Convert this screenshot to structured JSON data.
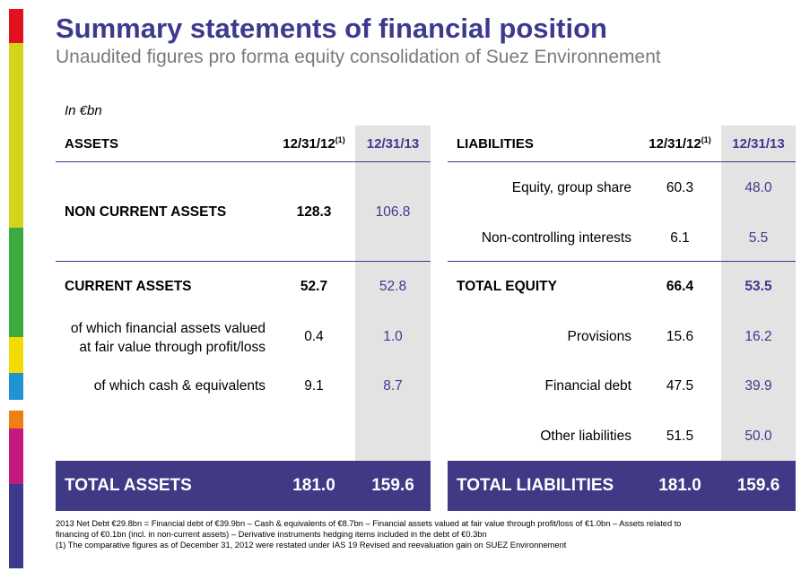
{
  "title": "Summary statements of financial position",
  "subtitle": "Unaudited figures pro forma equity consolidation of Suez Environnement",
  "unit": "In €bn",
  "colors": {
    "brand": "#3d3a8e",
    "total_bar": "#3f3986",
    "stripe": [
      "#e3101e",
      "#d4d41c",
      "#3bab3f",
      "#f5dc00",
      "#1f93d4",
      "#f07e12",
      "#c4197f",
      "#3d3a8e"
    ]
  },
  "assets": {
    "header": {
      "label": "ASSETS",
      "col1": "12/31/12",
      "col1_note": "(1)",
      "col2": "12/31/13"
    },
    "rows": [
      {
        "label": "NON CURRENT ASSETS",
        "v1": "128.3",
        "v2": "106.8"
      },
      {
        "label": "CURRENT ASSETS",
        "v1": "52.7",
        "v2": "52.8"
      },
      {
        "label_line1": "of which financial assets valued",
        "label_line2": "at fair value through profit/loss",
        "v1": "0.4",
        "v2": "1.0"
      },
      {
        "label": "of which cash & equivalents",
        "v1": "9.1",
        "v2": "8.7"
      }
    ],
    "total": {
      "label": "TOTAL ASSETS",
      "v1": "181.0",
      "v2": "159.6"
    }
  },
  "liabilities": {
    "header": {
      "label": "LIABILITIES",
      "col1": "12/31/12",
      "col1_note": "(1)",
      "col2": "12/31/13"
    },
    "rows": [
      {
        "label": "Equity, group share",
        "v1": "60.3",
        "v2": "48.0"
      },
      {
        "label": "Non-controlling interests",
        "v1": "6.1",
        "v2": "5.5"
      },
      {
        "label": "TOTAL EQUITY",
        "v1": "66.4",
        "v2": "53.5"
      },
      {
        "label": "Provisions",
        "v1": "15.6",
        "v2": "16.2"
      },
      {
        "label": "Financial debt",
        "v1": "47.5",
        "v2": "39.9"
      },
      {
        "label": "Other liabilities",
        "v1": "51.5",
        "v2": "50.0"
      }
    ],
    "total": {
      "label": "TOTAL LIABILITIES",
      "v1": "181.0",
      "v2": "159.6"
    }
  },
  "footnotes": [
    "2013 Net Debt €29.8bn = Financial debt of €39.9bn – Cash & equivalents of €8.7bn – Financial assets valued at fair value through profit/loss of €1.0bn – Assets related to",
    "financing of €0.1bn (incl. in non-current assets) – Derivative instruments hedging items included in the debt of €0.3bn",
    "(1) The comparative figures as of December 31, 2012 were restated under IAS 19 Revised and reevaluation gain on SUEZ Environnement"
  ]
}
